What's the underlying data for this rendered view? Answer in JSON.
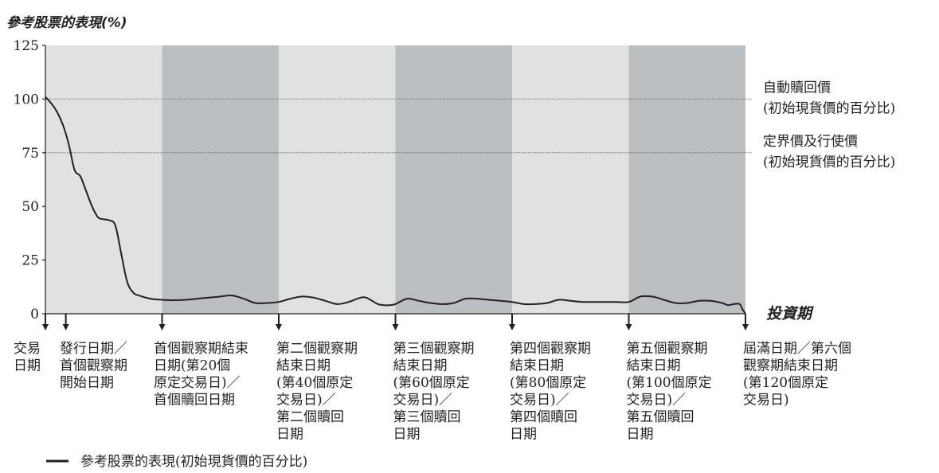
{
  "chart_data": {
    "type": "line",
    "title": "參考股票的表現(%)",
    "xlabel": "投資期",
    "ylim": [
      0,
      125
    ],
    "yticks": [
      "0",
      "25",
      "50",
      "75",
      "100",
      "125"
    ],
    "ytick_values": [
      0,
      25,
      50,
      75,
      100,
      125
    ],
    "xlim": [
      0,
      120
    ],
    "period_bands": [
      {
        "from": 0,
        "to": 20,
        "shade": "light"
      },
      {
        "from": 20,
        "to": 40,
        "shade": "dark"
      },
      {
        "from": 40,
        "to": 60,
        "shade": "light"
      },
      {
        "from": 60,
        "to": 80,
        "shade": "dark"
      },
      {
        "from": 80,
        "to": 100,
        "shade": "light"
      },
      {
        "from": 100,
        "to": 120,
        "shade": "dark"
      }
    ],
    "reference_lines": [
      {
        "value": 100,
        "label": [
          "自動贖回價",
          "(初始現貨價的百分比)"
        ]
      },
      {
        "value": 75,
        "label": [
          "定界價及行使價",
          "(初始現貨價的百分比)"
        ]
      }
    ],
    "event_markers": [
      {
        "x": 0,
        "label": [
          "交易",
          "日期"
        ]
      },
      {
        "x": 3.5,
        "label": [
          "發行日期／",
          "首個觀察期",
          "開始日期"
        ]
      },
      {
        "x": 20,
        "label": [
          "首個觀察期結束",
          "日期(第20個",
          "原定交易日)／",
          "首個贖回日期"
        ]
      },
      {
        "x": 40,
        "label": [
          "第二個觀察期",
          "結束日期",
          "(第40個原定",
          "交易日)／",
          "第二個贖回",
          "日期"
        ]
      },
      {
        "x": 60,
        "label": [
          "第三個觀察期",
          "結束日期",
          "(第60個原定",
          "交易日)／",
          "第三個贖回",
          "日期"
        ]
      },
      {
        "x": 80,
        "label": [
          "第四個觀察期",
          "結束日期",
          "(第80個原定",
          "交易日)／",
          "第四個贖回",
          "日期"
        ]
      },
      {
        "x": 100,
        "label": [
          "第五個觀察期",
          "結束日期",
          "(第100個原定",
          "交易日)／",
          "第五個贖回",
          "日期"
        ]
      },
      {
        "x": 120,
        "label": [
          "屆滿日期／第六個",
          "觀察期結束日期",
          "(第120個原定",
          "交易日)"
        ]
      }
    ],
    "series": [
      {
        "name": "參考股票的表現(初始現貨價的百分比)",
        "x": [
          0,
          1,
          2,
          3,
          4,
          5,
          6,
          7,
          8,
          9,
          10,
          11,
          12,
          13,
          14,
          15,
          16,
          18,
          20,
          22,
          24,
          26,
          28,
          30,
          32,
          34,
          36,
          38,
          40,
          42,
          44,
          46,
          48,
          50,
          52,
          54,
          55,
          56,
          57,
          58,
          59,
          60,
          62,
          64,
          66,
          68,
          70,
          72,
          74,
          76,
          78,
          80,
          82,
          84,
          86,
          88,
          90,
          92,
          94,
          96,
          98,
          100,
          102,
          104,
          106,
          108,
          110,
          112,
          114,
          116,
          117,
          118,
          119,
          119.5,
          120
        ],
        "y": [
          101,
          98,
          94,
          88,
          79,
          67,
          64,
          57,
          50,
          45,
          44,
          43.5,
          41,
          28,
          15,
          10,
          8.5,
          7,
          6.5,
          6.3,
          6.5,
          7,
          7.5,
          8,
          8.5,
          7,
          5,
          5,
          5.5,
          7,
          8,
          7.5,
          6,
          4.5,
          5.5,
          7.5,
          7.5,
          6,
          4.5,
          4,
          4,
          4.5,
          7,
          6,
          5,
          4.5,
          5,
          7,
          7,
          6.5,
          6,
          5.5,
          4.5,
          4.5,
          5,
          6.5,
          6,
          5.5,
          5.5,
          5.5,
          5.5,
          5.5,
          8,
          8,
          6.5,
          5,
          5,
          6,
          6,
          5,
          4,
          4.5,
          4.5,
          2,
          0
        ]
      }
    ],
    "legend_position": "bottom-left"
  }
}
